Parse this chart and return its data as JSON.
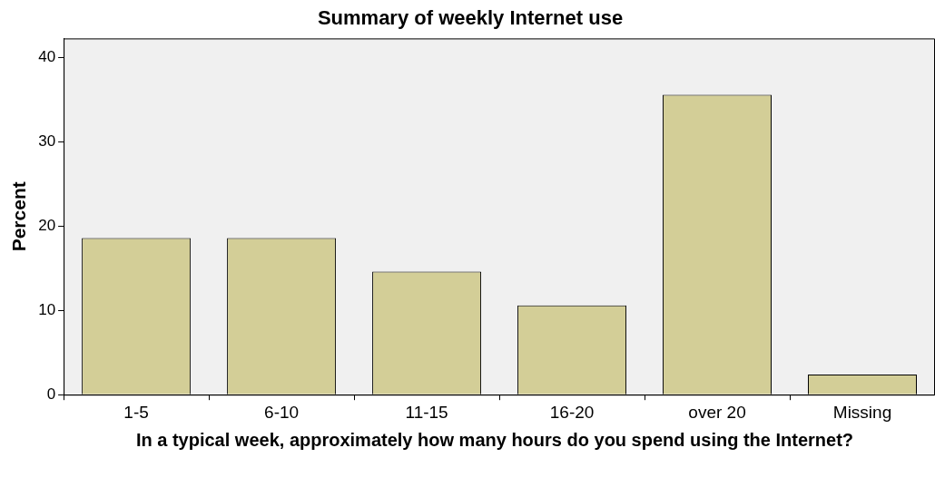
{
  "chart_data": {
    "type": "bar",
    "title": "Summary of weekly Internet use",
    "xlabel": "In a typical week, approximately how many hours do you spend using the Internet?",
    "ylabel": "Percent",
    "categories": [
      "1-5",
      "6-10",
      "11-15",
      "16-20",
      "over 20",
      "Missing"
    ],
    "series": [
      {
        "color": "#d3ce97",
        "values": [
          18.6,
          18.6,
          14.6,
          10.6,
          35.6,
          2.4
        ]
      }
    ],
    "ylim": [
      0,
      42.3
    ],
    "yticks": [
      0,
      10,
      20,
      30,
      40
    ],
    "grid": false,
    "legend": false
  }
}
